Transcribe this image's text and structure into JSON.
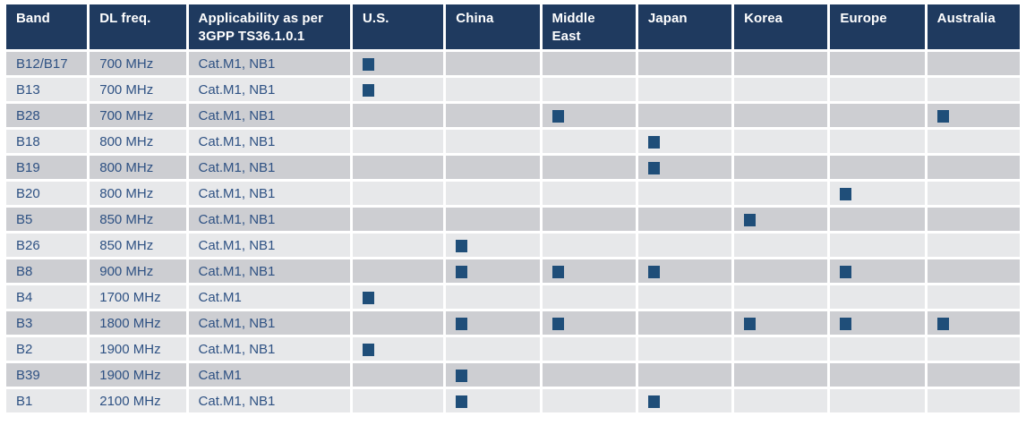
{
  "table": {
    "columns": [
      "Band",
      "DL freq.",
      "Applicability as per 3GPP TS36.1.0.1",
      "U.S.",
      "China",
      "Middle East",
      "Japan",
      "Korea",
      "Europe",
      "Australia"
    ],
    "region_columns": [
      "U.S.",
      "China",
      "Middle East",
      "Japan",
      "Korea",
      "Europe",
      "Australia"
    ],
    "rows": [
      {
        "band": "B12/B17",
        "dl_freq": "700 MHz",
        "applicability": "Cat.M1, NB1",
        "markers": [
          "U.S."
        ]
      },
      {
        "band": "B13",
        "dl_freq": "700 MHz",
        "applicability": "Cat.M1, NB1",
        "markers": [
          "U.S."
        ]
      },
      {
        "band": "B28",
        "dl_freq": "700 MHz",
        "applicability": "Cat.M1, NB1",
        "markers": [
          "Middle East",
          "Australia"
        ]
      },
      {
        "band": "B18",
        "dl_freq": "800 MHz",
        "applicability": "Cat.M1, NB1",
        "markers": [
          "Japan"
        ]
      },
      {
        "band": "B19",
        "dl_freq": "800 MHz",
        "applicability": "Cat.M1, NB1",
        "markers": [
          "Japan"
        ]
      },
      {
        "band": "B20",
        "dl_freq": "800 MHz",
        "applicability": "Cat.M1, NB1",
        "markers": [
          "Europe"
        ]
      },
      {
        "band": "B5",
        "dl_freq": "850 MHz",
        "applicability": "Cat.M1, NB1",
        "markers": [
          "Korea"
        ]
      },
      {
        "band": "B26",
        "dl_freq": "850 MHz",
        "applicability": "Cat.M1, NB1",
        "markers": [
          "China"
        ]
      },
      {
        "band": "B8",
        "dl_freq": "900 MHz",
        "applicability": "Cat.M1, NB1",
        "markers": [
          "China",
          "Middle East",
          "Japan",
          "Europe"
        ]
      },
      {
        "band": "B4",
        "dl_freq": "1700 MHz",
        "applicability": "Cat.M1",
        "markers": [
          "U.S."
        ]
      },
      {
        "band": "B3",
        "dl_freq": "1800 MHz",
        "applicability": "Cat.M1, NB1",
        "markers": [
          "China",
          "Middle East",
          "Korea",
          "Europe",
          "Australia"
        ]
      },
      {
        "band": "B2",
        "dl_freq": "1900 MHz",
        "applicability": "Cat.M1, NB1",
        "markers": [
          "U.S."
        ]
      },
      {
        "band": "B39",
        "dl_freq": "1900 MHz",
        "applicability": "Cat.M1",
        "markers": [
          "China"
        ]
      },
      {
        "band": "B1",
        "dl_freq": "2100 MHz",
        "applicability": "Cat.M1, NB1",
        "markers": [
          "China",
          "Japan"
        ]
      }
    ]
  },
  "icons": {
    "applicable_marker": "filled-navy-square"
  },
  "colors": {
    "page-bg": "#ffffff",
    "header-bg": "#1f3a5f",
    "header-text": "#ffffff",
    "body-text": "#2e5183",
    "row-odd-bg": "#cdced2",
    "row-even-bg": "#e7e8ea",
    "marker-fill": "#1f4e79",
    "grid-gap": "#ffffff"
  }
}
